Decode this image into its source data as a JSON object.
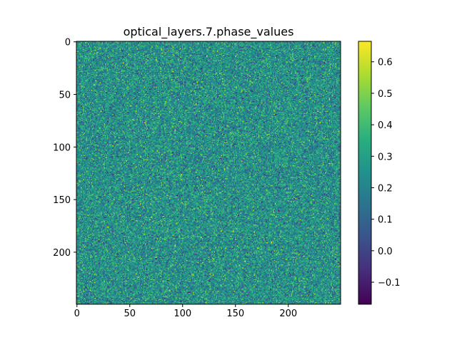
{
  "chart_data": {
    "type": "heatmap",
    "title": "optical_layers.7.phase_values",
    "xlabel": "",
    "ylabel": "",
    "rows": 250,
    "cols": 250,
    "xlim": [
      -0.5,
      249.5
    ],
    "ylim": [
      249.5,
      -0.5
    ],
    "x_ticks": [
      0,
      50,
      100,
      150,
      200
    ],
    "y_ticks": [
      0,
      50,
      100,
      150,
      200
    ],
    "colormap": "viridis",
    "value_range": [
      -0.17,
      0.665
    ],
    "value_distribution": {
      "mean": 0.25,
      "std": 0.11
    },
    "colorbar": {
      "ticks": [
        -0.1,
        0.0,
        0.1,
        0.2,
        0.3,
        0.4,
        0.5,
        0.6
      ],
      "tick_labels": [
        "−0.1",
        "0.0",
        "0.1",
        "0.2",
        "0.3",
        "0.4",
        "0.5",
        "0.6"
      ]
    },
    "grid": false
  }
}
